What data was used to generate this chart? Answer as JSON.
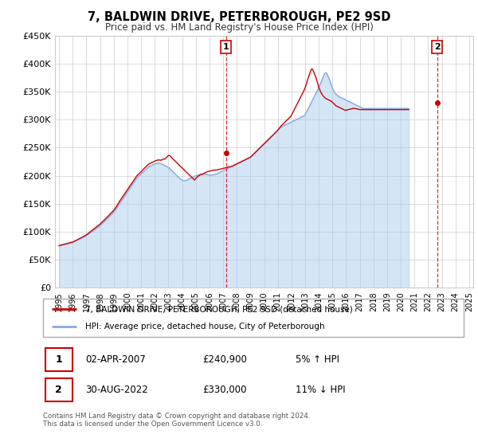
{
  "title": "7, BALDWIN DRIVE, PETERBOROUGH, PE2 9SD",
  "subtitle": "Price paid vs. HM Land Registry's House Price Index (HPI)",
  "ylim": [
    0,
    450000
  ],
  "yticks": [
    0,
    50000,
    100000,
    150000,
    200000,
    250000,
    300000,
    350000,
    400000,
    450000
  ],
  "ytick_labels": [
    "£0",
    "£50K",
    "£100K",
    "£150K",
    "£200K",
    "£250K",
    "£300K",
    "£350K",
    "£400K",
    "£450K"
  ],
  "sale1_year": 2007.22,
  "sale1_price": 240900,
  "sale1_label": "1",
  "sale2_year": 2022.66,
  "sale2_price": 330000,
  "sale2_label": "2",
  "line_color_house": "#cc0000",
  "line_color_hpi": "#88aadd",
  "fill_color_hpi": "#aaccee",
  "annotation_color": "#cc0000",
  "grid_color": "#cccccc",
  "legend_house": "7, BALDWIN DRIVE, PETERBOROUGH, PE2 9SD (detached house)",
  "legend_hpi": "HPI: Average price, detached house, City of Peterborough",
  "table_row1": [
    "1",
    "02-APR-2007",
    "£240,900",
    "5% ↑ HPI"
  ],
  "table_row2": [
    "2",
    "30-AUG-2022",
    "£330,000",
    "11% ↓ HPI"
  ],
  "footer": "Contains HM Land Registry data © Crown copyright and database right 2024.\nThis data is licensed under the Open Government Licence v3.0.",
  "xtick_years": [
    1995,
    1996,
    1997,
    1998,
    1999,
    2000,
    2001,
    2002,
    2003,
    2004,
    2005,
    2006,
    2007,
    2008,
    2009,
    2010,
    2011,
    2012,
    2013,
    2014,
    2015,
    2016,
    2017,
    2018,
    2019,
    2020,
    2021,
    2022,
    2023,
    2024,
    2025
  ],
  "hpi_monthly": [
    75000,
    75500,
    76000,
    76500,
    77000,
    77500,
    78000,
    78500,
    79000,
    79500,
    80000,
    80500,
    81000,
    82000,
    83000,
    84000,
    85000,
    86000,
    87000,
    88000,
    89000,
    90000,
    91000,
    92000,
    93000,
    94500,
    96000,
    97500,
    99000,
    100500,
    102000,
    103500,
    105000,
    106500,
    108000,
    109500,
    111000,
    113000,
    115000,
    117000,
    119000,
    121000,
    123000,
    125000,
    127000,
    129000,
    131000,
    133000,
    135000,
    138000,
    141000,
    144000,
    147000,
    150000,
    153000,
    156000,
    159000,
    162000,
    165000,
    168000,
    171000,
    174000,
    177000,
    180000,
    183000,
    186000,
    189000,
    192000,
    195000,
    197000,
    199000,
    201000,
    203000,
    205000,
    207000,
    209000,
    211000,
    213000,
    215000,
    216000,
    217000,
    218000,
    219000,
    220000,
    221000,
    221500,
    222000,
    222500,
    222000,
    221500,
    221000,
    220000,
    219000,
    218000,
    217000,
    216000,
    215000,
    213000,
    211000,
    209000,
    207000,
    205000,
    203000,
    201000,
    199000,
    197000,
    195000,
    193000,
    192000,
    191500,
    191000,
    191500,
    192000,
    193000,
    194000,
    195000,
    196000,
    197000,
    198000,
    199000,
    200000,
    200500,
    201000,
    201500,
    202000,
    202500,
    203000,
    203000,
    203000,
    202500,
    202000,
    201500,
    201000,
    201000,
    201000,
    201500,
    202000,
    202500,
    203000,
    204000,
    205000,
    206000,
    207000,
    208000,
    209000,
    210000,
    211000,
    212000,
    213000,
    214000,
    215000,
    216000,
    217000,
    218000,
    219000,
    220000,
    221000,
    222000,
    223000,
    224000,
    225000,
    226000,
    227000,
    228000,
    229000,
    230000,
    231000,
    232000,
    233000,
    235000,
    237000,
    239000,
    241000,
    243000,
    245000,
    247000,
    249000,
    251000,
    253000,
    255000,
    257000,
    259000,
    261000,
    263000,
    265000,
    267000,
    269000,
    271000,
    273000,
    275000,
    277000,
    279000,
    281000,
    283000,
    285000,
    287000,
    288000,
    289000,
    290000,
    291000,
    292000,
    293000,
    294000,
    295000,
    296000,
    297000,
    298000,
    299000,
    300000,
    301000,
    302000,
    303000,
    304000,
    305000,
    306000,
    307000,
    309000,
    313000,
    317000,
    321000,
    325000,
    329000,
    333000,
    337000,
    341000,
    345000,
    349000,
    353000,
    357000,
    362000,
    367000,
    372000,
    377000,
    382000,
    384000,
    382000,
    378000,
    374000,
    368000,
    362000,
    356000,
    352000,
    348000,
    346000,
    344000,
    342000,
    341000,
    340000,
    339000,
    338000,
    337000,
    336000,
    335000,
    334000,
    333000,
    332000,
    331000,
    330000,
    329000,
    328000,
    327000,
    326000,
    325000,
    324000,
    323000,
    322000,
    321000,
    320000,
    320000,
    320000,
    320000,
    320000,
    320000,
    320000,
    320000,
    320000,
    320000,
    320000,
    320000,
    320000,
    320000,
    320000,
    320000,
    320000,
    320000,
    320000,
    320000,
    320000,
    320000,
    320000,
    320000,
    320000,
    320000,
    320000,
    320000,
    320000,
    320000,
    320000,
    320000,
    320000,
    320000,
    320000,
    320000,
    320000,
    320000,
    320000,
    320000,
    320000
  ],
  "house_monthly": [
    75000,
    75500,
    76000,
    76800,
    77200,
    77800,
    78200,
    78800,
    79200,
    80000,
    80500,
    81000,
    81500,
    82500,
    83500,
    84500,
    85500,
    86500,
    87800,
    88800,
    90000,
    91000,
    92000,
    93200,
    94500,
    96000,
    97500,
    99200,
    101000,
    102500,
    104000,
    105500,
    107200,
    109000,
    110500,
    112000,
    113500,
    115500,
    117500,
    119500,
    121500,
    123500,
    125500,
    127500,
    129800,
    132000,
    134000,
    136000,
    138000,
    141000,
    144000,
    147000,
    150500,
    154000,
    157000,
    160000,
    163000,
    166000,
    169000,
    172000,
    175000,
    178000,
    181000,
    184000,
    187000,
    190000,
    193000,
    196000,
    199000,
    201000,
    203000,
    205000,
    207000,
    209000,
    211500,
    213500,
    215500,
    217500,
    219500,
    221000,
    222000,
    223000,
    224000,
    225000,
    226000,
    227000,
    227500,
    228000,
    228000,
    227500,
    228000,
    229000,
    229500,
    230000,
    232000,
    234000,
    236000,
    236000,
    234000,
    232000,
    230000,
    228000,
    226000,
    224000,
    222000,
    220000,
    218000,
    216000,
    214000,
    212000,
    210000,
    208000,
    206000,
    204000,
    202000,
    200000,
    198000,
    196000,
    194000,
    192000,
    195000,
    197000,
    199000,
    200000,
    202000,
    202000,
    203000,
    204000,
    205000,
    206000,
    207000,
    207500,
    208000,
    208500,
    209000,
    209500,
    210000,
    210000,
    210000,
    210500,
    211000,
    211500,
    212000,
    212500,
    213000,
    213500,
    214000,
    214500,
    215000,
    215500,
    216000,
    216500,
    217000,
    218000,
    219000,
    220000,
    221000,
    222000,
    223000,
    224000,
    225000,
    226000,
    227000,
    228000,
    229000,
    230000,
    231000,
    232000,
    233000,
    235000,
    237000,
    239000,
    241000,
    243000,
    245000,
    247000,
    249000,
    251000,
    253000,
    255000,
    257000,
    259000,
    261000,
    263000,
    265000,
    267000,
    269000,
    271000,
    273000,
    275000,
    277000,
    279000,
    281500,
    284000,
    286500,
    289000,
    291000,
    293000,
    295000,
    297000,
    299000,
    301000,
    303000,
    305000,
    308000,
    312000,
    316000,
    320000,
    324000,
    328000,
    332000,
    336000,
    340000,
    344000,
    348000,
    352000,
    357000,
    363000,
    370000,
    376000,
    382000,
    388000,
    391000,
    388000,
    383000,
    378000,
    372000,
    365000,
    358000,
    353000,
    348000,
    345000,
    342000,
    340000,
    338000,
    337000,
    336000,
    335000,
    334000,
    333000,
    331000,
    329000,
    327000,
    325000,
    324000,
    323000,
    322000,
    321000,
    320000,
    319000,
    318000,
    317000,
    317000,
    317500,
    318000,
    318500,
    319000,
    319500,
    320000,
    320000,
    320000,
    319500,
    319000,
    318500,
    318000,
    318000,
    318000,
    318000,
    318000,
    318000,
    318000,
    318000,
    318000,
    318000,
    318000,
    318000,
    318000,
    318000,
    318000,
    318000,
    318000,
    318000,
    318000,
    318000,
    318000,
    318000,
    318000,
    318000,
    318000,
    318000,
    318000,
    318000,
    318000,
    318000,
    318000,
    318000,
    318000,
    318000,
    318000,
    318000,
    318000,
    318000,
    318000,
    318000,
    318000,
    318000,
    318000,
    318000
  ]
}
